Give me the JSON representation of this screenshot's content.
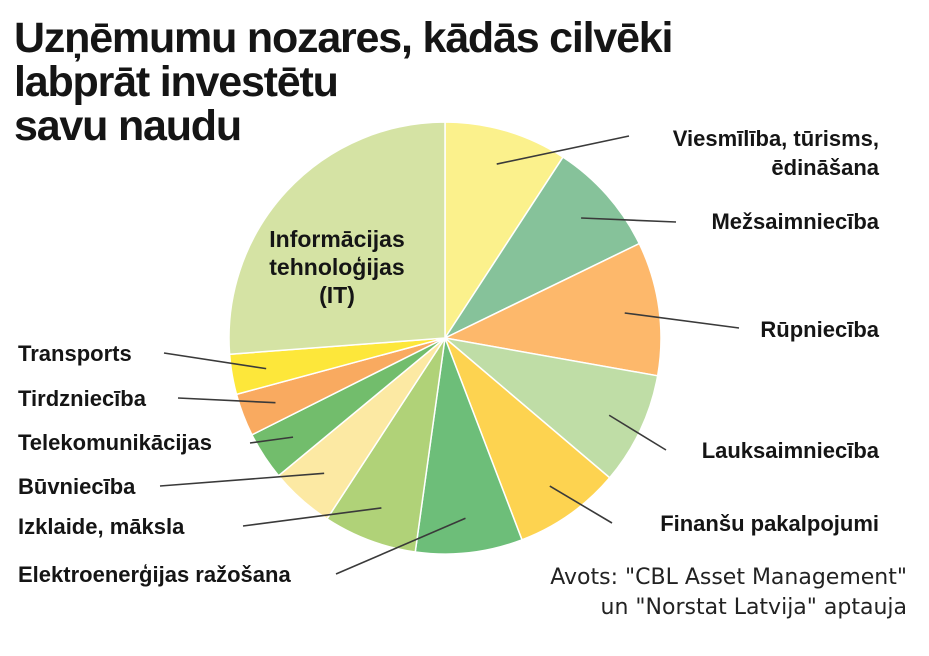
{
  "title_lines": [
    "Uzņēmumu nozares, kādās cilvēki",
    "labprāt investētu",
    "savu naudu"
  ],
  "source_lines": [
    "Avots: \"CBL Asset Management\"",
    "un \"Norstat Latvija\" aptauja"
  ],
  "chart_data": {
    "type": "pie",
    "title": "Uzņēmumu nozares, kādās cilvēki labprāt investētu savu naudu",
    "start": "12 o'clock, clockwise",
    "slices": [
      {
        "label": [
          "Viesmīlība, tūrisms,",
          "ēdināšana"
        ],
        "value": 9.2,
        "color": "#fbf18c"
      },
      {
        "label": [
          "Mežsaimniecība"
        ],
        "value": 8.6,
        "color": "#86c29a"
      },
      {
        "label": [
          "Rūpniecība"
        ],
        "value": 10.0,
        "color": "#fdb86b"
      },
      {
        "label": [
          "Lauksaimniecība"
        ],
        "value": 8.4,
        "color": "#bfdda6"
      },
      {
        "label": [
          "Finanšu pakalpojumi"
        ],
        "value": 8.0,
        "color": "#fdd350"
      },
      {
        "label": [
          "Elektroenerģijas ražošana"
        ],
        "value": 8.0,
        "color": "#6dbe79"
      },
      {
        "label": [
          "Izklaide, māksla"
        ],
        "value": 7.0,
        "color": "#b0d278"
      },
      {
        "label": [
          "Būvniecība"
        ],
        "value": 4.8,
        "color": "#fce9a3"
      },
      {
        "label": [
          "Telekomunikācijas"
        ],
        "value": 3.6,
        "color": "#72bd6c"
      },
      {
        "label": [
          "Tirdzniecība"
        ],
        "value": 3.2,
        "color": "#f9aa60"
      },
      {
        "label": [
          "Transports"
        ],
        "value": 3.0,
        "color": "#fde73a"
      },
      {
        "label": [
          "Informācijas",
          "tehnoloģijas",
          "(IT)"
        ],
        "value": 26.2,
        "color": "#d5e3a4"
      }
    ]
  }
}
